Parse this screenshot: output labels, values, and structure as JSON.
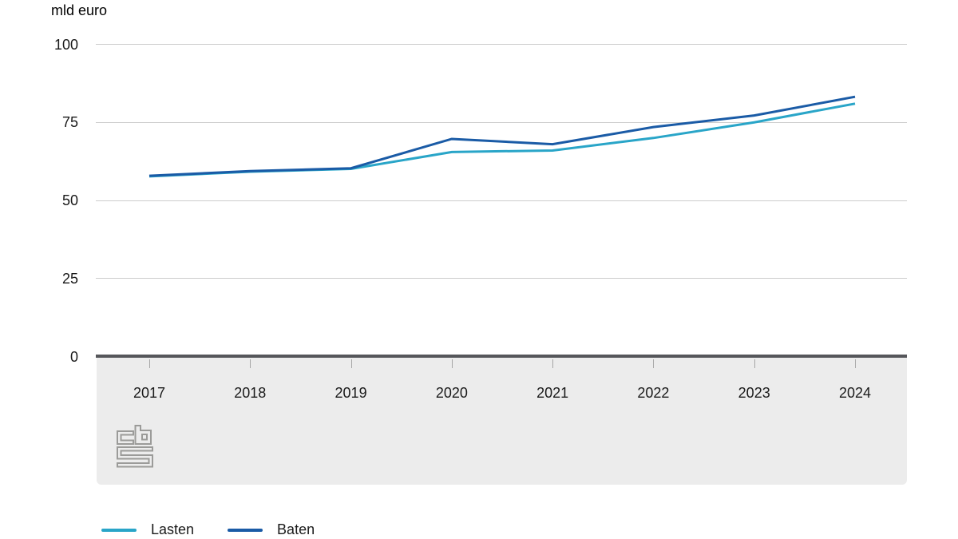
{
  "chart_data": {
    "type": "line",
    "title": "",
    "unit_label": "mld euro",
    "categories": [
      "2017",
      "2018",
      "2019",
      "2020",
      "2021",
      "2022",
      "2023",
      "2024"
    ],
    "series": [
      {
        "name": "Lasten",
        "color": "#29a5c8",
        "values": [
          57.7,
          59.2,
          60.1,
          65.5,
          66.0,
          70.0,
          75.0,
          81.0
        ]
      },
      {
        "name": "Baten",
        "color": "#1a5ba6",
        "values": [
          57.9,
          59.4,
          60.3,
          69.7,
          68.0,
          73.5,
          77.2,
          83.2
        ]
      }
    ],
    "yticks": [
      0,
      25,
      50,
      75,
      100
    ],
    "ylim": [
      0,
      100
    ],
    "xlabel": "",
    "ylabel": "mld euro",
    "grid": "horizontal",
    "legend_position": "bottom"
  },
  "colors": {
    "grid": "#cccccc",
    "axis": "#55565a",
    "band": "#ececec",
    "text": "#1a1a1a",
    "logo": "#9b9b99"
  },
  "branding": {
    "logo_name": "cbs-logo"
  }
}
